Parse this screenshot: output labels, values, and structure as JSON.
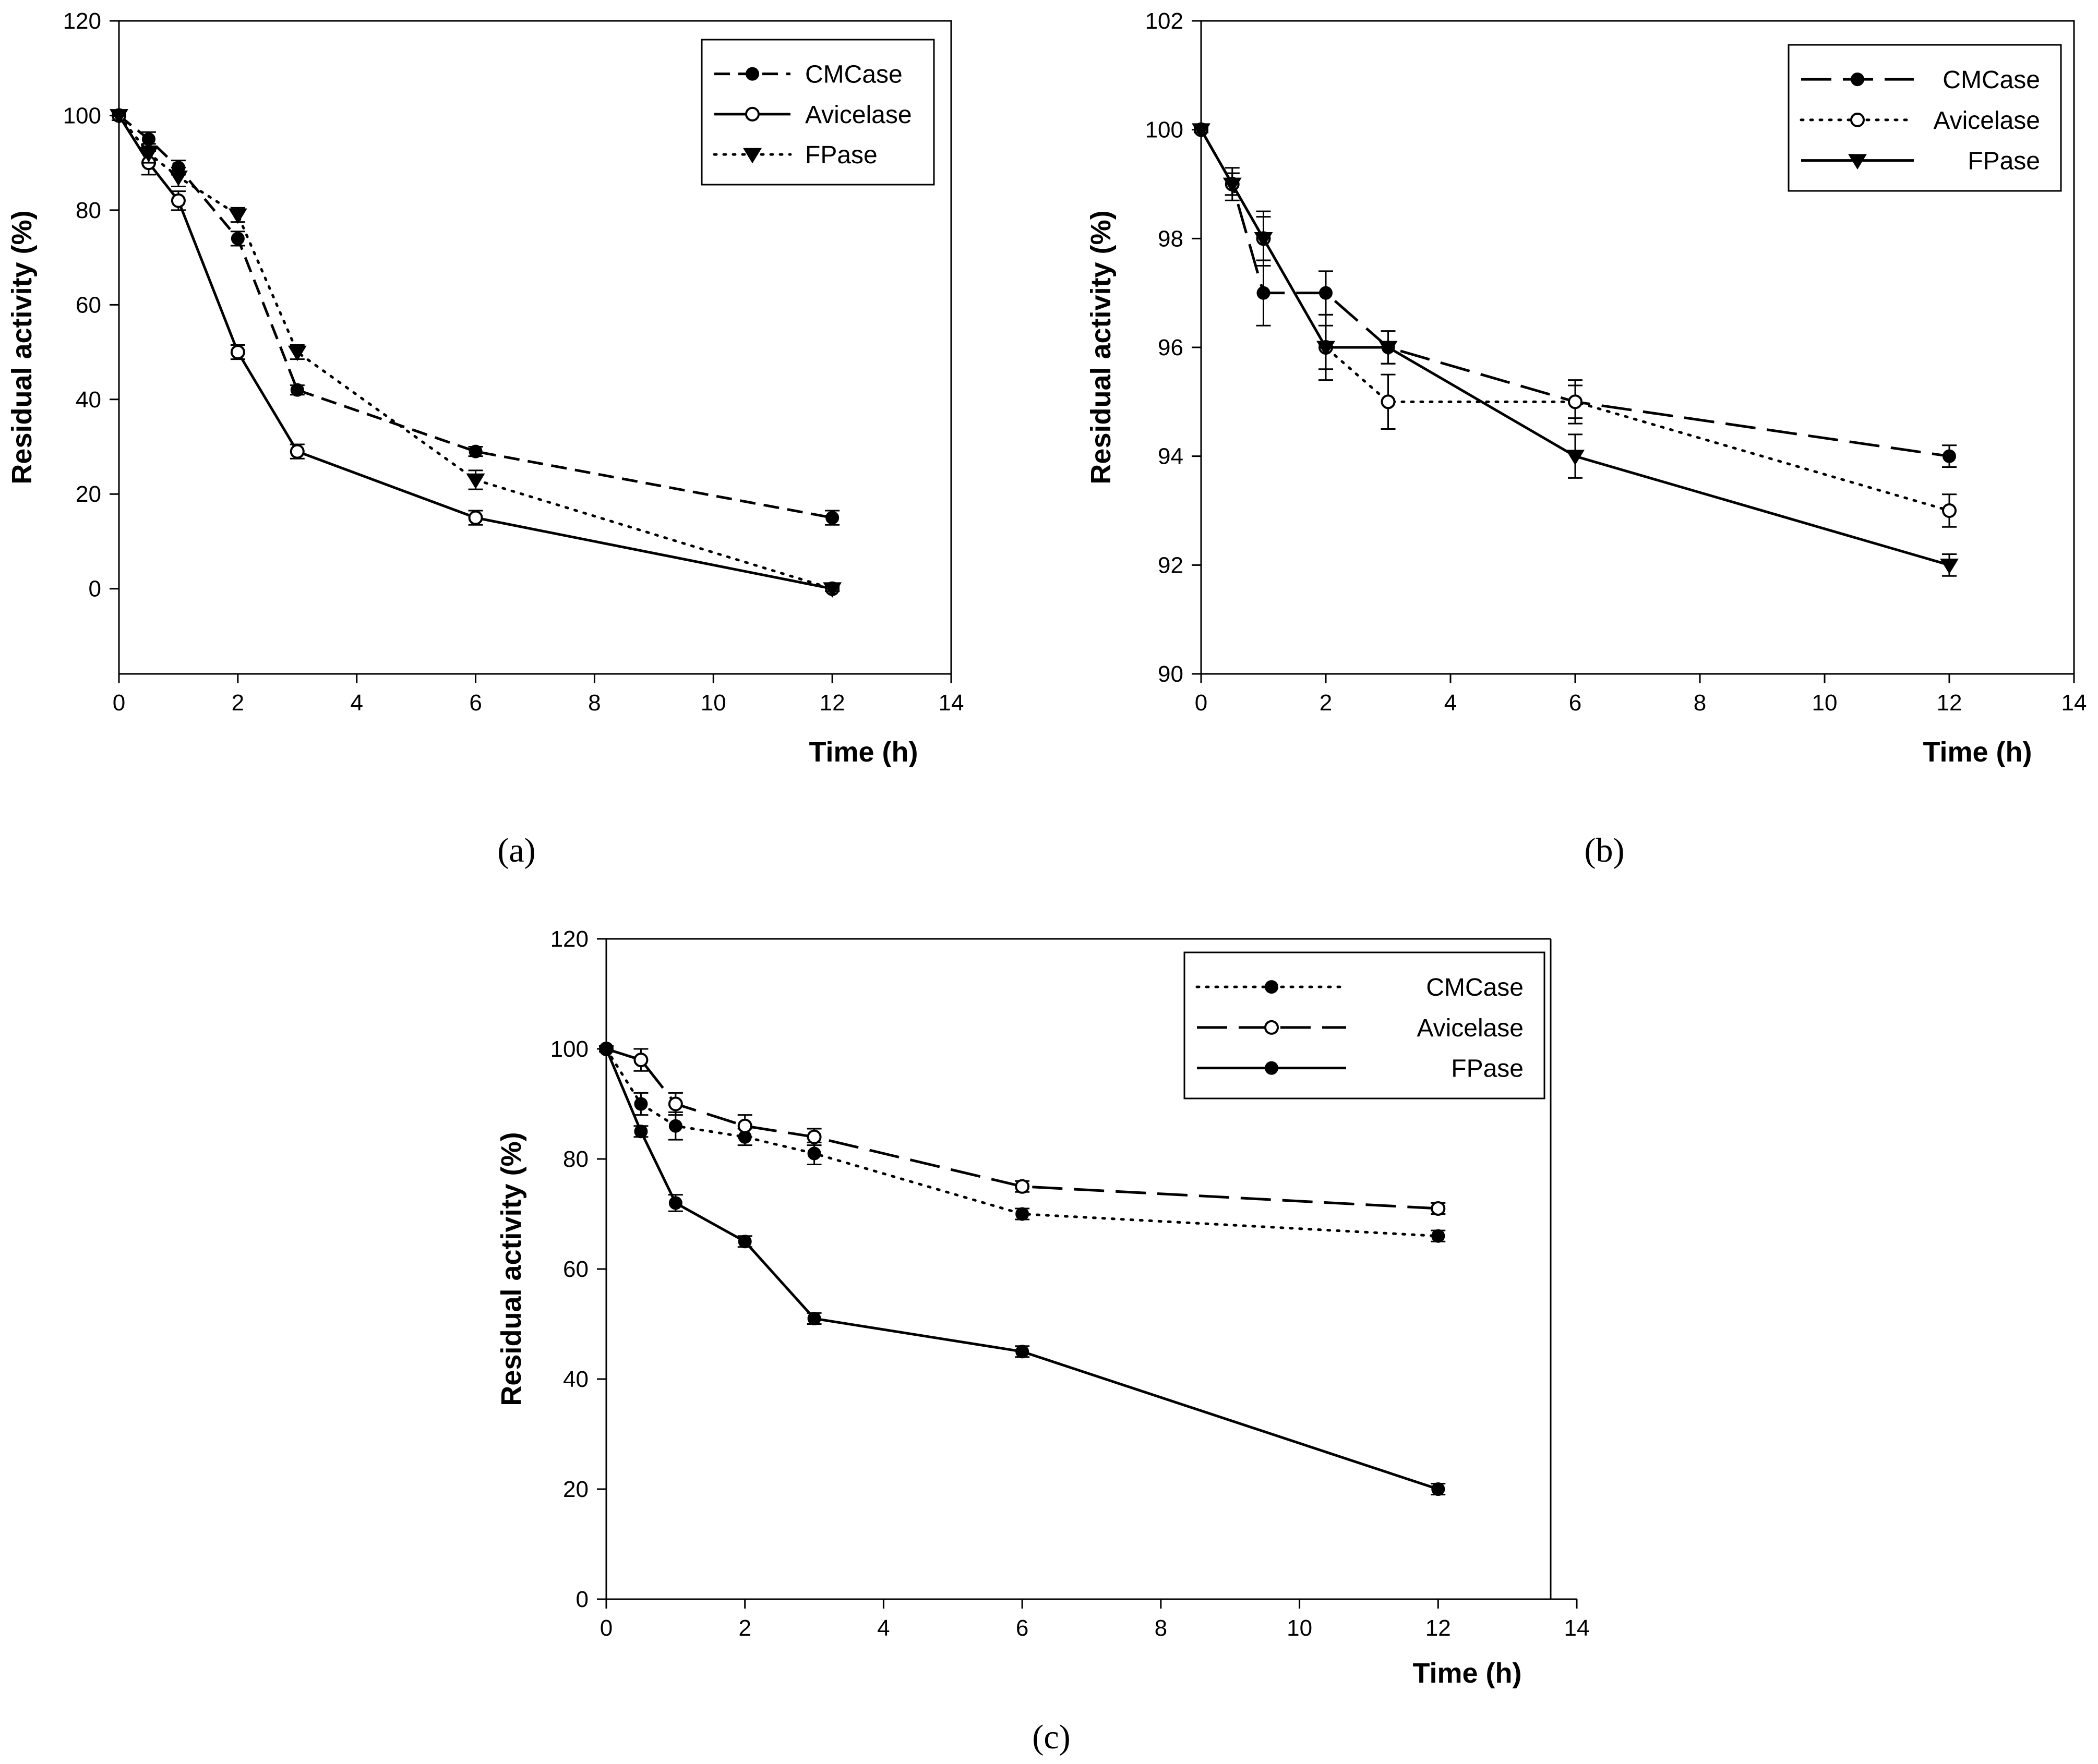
{
  "chart_data": [
    {
      "panel": "(a)",
      "type": "line",
      "xlabel": "Time (h)",
      "ylabel": "Residual activity (%)",
      "xlim": [
        0,
        14
      ],
      "ylim": [
        -18,
        120
      ],
      "xticks": [
        0,
        2,
        4,
        6,
        8,
        10,
        12,
        14
      ],
      "yticks": [
        0,
        20,
        40,
        60,
        80,
        100,
        120
      ],
      "legend_position": "top-right",
      "series": [
        {
          "name": "CMCase",
          "style": "dash",
          "marker": "filled-circle",
          "x": [
            0,
            0.5,
            1,
            2,
            3,
            6,
            12
          ],
          "values": [
            100,
            95,
            89,
            74,
            42,
            29,
            15
          ],
          "err": [
            1,
            1.5,
            1.5,
            1.5,
            1,
            1,
            1.5
          ]
        },
        {
          "name": "Avicelase",
          "style": "solid",
          "marker": "open-circle",
          "x": [
            0,
            0.5,
            1,
            2,
            3,
            6,
            12
          ],
          "values": [
            100,
            90,
            82,
            50,
            29,
            15,
            0
          ],
          "err": [
            1,
            2.5,
            2,
            1.5,
            1.5,
            1.5,
            0.5
          ]
        },
        {
          "name": "FPase",
          "style": "dot",
          "marker": "filled-triangle",
          "x": [
            0,
            0.5,
            1,
            2,
            3,
            6,
            12
          ],
          "values": [
            100,
            92,
            87,
            79,
            50,
            23,
            0
          ],
          "err": [
            1,
            2,
            2,
            1.5,
            1.5,
            2,
            0.5
          ]
        }
      ]
    },
    {
      "panel": "(b)",
      "type": "line",
      "xlabel": "Time (h)",
      "ylabel": "Residual activity (%)",
      "xlim": [
        0,
        14
      ],
      "ylim": [
        90,
        102
      ],
      "xticks": [
        0,
        2,
        4,
        6,
        8,
        10,
        12,
        14
      ],
      "yticks": [
        90,
        92,
        94,
        96,
        98,
        100,
        102
      ],
      "legend_position": "top-right",
      "series": [
        {
          "name": "CMCase",
          "style": "longdash",
          "marker": "filled-circle",
          "x": [
            0,
            0.5,
            1,
            2,
            3,
            6,
            12
          ],
          "values": [
            100,
            99,
            97,
            97,
            96,
            95,
            94
          ],
          "err": [
            0.05,
            0.2,
            0.6,
            0.4,
            0.3,
            0.3,
            0.2
          ]
        },
        {
          "name": "Avicelase",
          "style": "dot",
          "marker": "open-circle",
          "x": [
            0,
            0.5,
            1,
            2,
            3,
            6,
            12
          ],
          "values": [
            100,
            99,
            98,
            96,
            95,
            95,
            93
          ],
          "err": [
            0.05,
            0.2,
            0.5,
            0.6,
            0.5,
            0.4,
            0.3
          ]
        },
        {
          "name": "FPase",
          "style": "solid",
          "marker": "filled-triangle",
          "x": [
            0,
            0.5,
            1,
            2,
            3,
            6,
            12
          ],
          "values": [
            100,
            99,
            98,
            96,
            96,
            94,
            92
          ],
          "err": [
            0.05,
            0.3,
            0.4,
            0.4,
            0.3,
            0.4,
            0.2
          ]
        }
      ]
    },
    {
      "panel": "(c)",
      "type": "line",
      "xlabel": "Time (h)",
      "ylabel": "Residual activity (%)",
      "xlim": [
        0,
        14
      ],
      "ylim": [
        0,
        120
      ],
      "xticks": [
        0,
        2,
        4,
        6,
        8,
        10,
        12,
        14
      ],
      "yticks": [
        0,
        20,
        40,
        60,
        80,
        100,
        120
      ],
      "legend_position": "top-right",
      "series": [
        {
          "name": "CMCase",
          "style": "dot",
          "marker": "filled-circle",
          "x": [
            0,
            0.5,
            1,
            2,
            3,
            6,
            12
          ],
          "values": [
            100,
            90,
            86,
            84,
            81,
            70,
            66
          ],
          "err": [
            0.5,
            2,
            2.5,
            1.5,
            2,
            1,
            1
          ]
        },
        {
          "name": "Avicelase",
          "style": "longdash",
          "marker": "open-circle",
          "x": [
            0,
            0.5,
            1,
            2,
            3,
            6,
            12
          ],
          "values": [
            100,
            98,
            90,
            86,
            84,
            75,
            71
          ],
          "err": [
            0.5,
            2,
            2,
            2,
            1.5,
            1,
            1
          ]
        },
        {
          "name": "FPase",
          "style": "solid",
          "marker": "filled-circle",
          "x": [
            0,
            0.5,
            1,
            2,
            3,
            6,
            12
          ],
          "values": [
            100,
            85,
            72,
            65,
            51,
            45,
            20
          ],
          "err": [
            0.5,
            1,
            1.5,
            1,
            1,
            1,
            1
          ]
        }
      ]
    }
  ]
}
